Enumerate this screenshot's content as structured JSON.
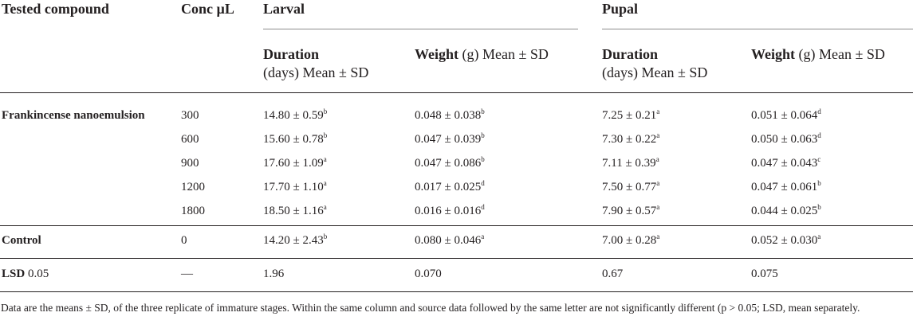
{
  "headers": {
    "tested_compound": "Tested compound",
    "conc": "Conc µL",
    "larval": "Larval",
    "pupal": "Pupal",
    "duration_bold": "Duration",
    "duration_rest": "(days) Mean ± SD",
    "weight_bold": "Weight",
    "weight_rest": " (g) Mean ± SD"
  },
  "groups": {
    "frankincense": "Frankincense nanoemulsion",
    "control": "Control",
    "lsd_bold": "LSD",
    "lsd_rest": " 0.05"
  },
  "rows": [
    {
      "conc": "300",
      "ld": "14.80 ± 0.59",
      "ld_s": "b",
      "lw": "0.048 ± 0.038",
      "lw_s": "b",
      "pd": "7.25 ± 0.21",
      "pd_s": "a",
      "pw": "0.051 ± 0.064",
      "pw_s": "d"
    },
    {
      "conc": "600",
      "ld": "15.60 ± 0.78",
      "ld_s": "b",
      "lw": "0.047 ± 0.039",
      "lw_s": "b",
      "pd": "7.30 ± 0.22",
      "pd_s": "a",
      "pw": "0.050 ± 0.063",
      "pw_s": "d"
    },
    {
      "conc": "900",
      "ld": "17.60 ± 1.09",
      "ld_s": "a",
      "lw": "0.047 ± 0.086",
      "lw_s": "b",
      "pd": "7.11 ± 0.39",
      "pd_s": "a",
      "pw": "0.047 ± 0.043",
      "pw_s": "c"
    },
    {
      "conc": "1200",
      "ld": "17.70 ± 1.10",
      "ld_s": "a",
      "lw": "0.017 ± 0.025",
      "lw_s": "d",
      "pd": "7.50 ± 0.77",
      "pd_s": "a",
      "pw": "0.047 ± 0.061",
      "pw_s": "b"
    },
    {
      "conc": "1800",
      "ld": "18.50 ± 1.16",
      "ld_s": "a",
      "lw": "0.016 ± 0.016",
      "lw_s": "d",
      "pd": "7.90 ± 0.57",
      "pd_s": "a",
      "pw": "0.044 ± 0.025",
      "pw_s": "b"
    }
  ],
  "control_row": {
    "conc": "0",
    "ld": "14.20 ± 2.43",
    "ld_s": "b",
    "lw": "0.080 ± 0.046",
    "lw_s": "a",
    "pd": "7.00 ± 0.28",
    "pd_s": "a",
    "pw": "0.052 ± 0.030",
    "pw_s": "a"
  },
  "lsd_row": {
    "conc": "—",
    "ld": "1.96",
    "lw": "0.070",
    "pd": "0.67",
    "pw": "0.075"
  },
  "footnote": "Data are the means ± SD, of the three replicate of immature stages. Within the same column and source data followed by the same letter are not significantly different (p > 0.05; LSD, mean separately."
}
